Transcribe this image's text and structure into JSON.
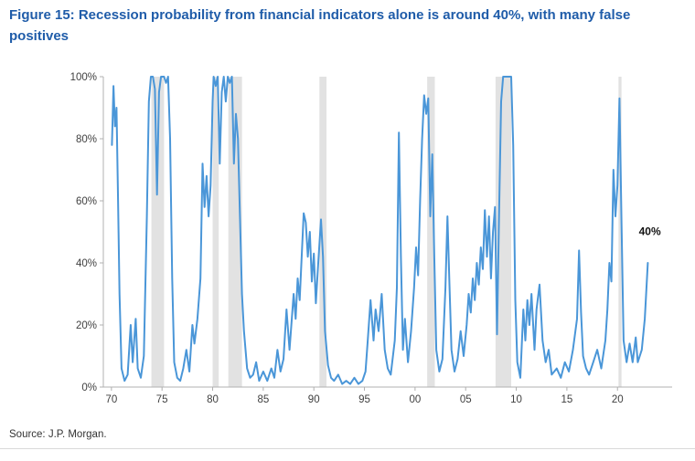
{
  "page": {
    "source": "Source: J.P. Morgan."
  },
  "chart_data": {
    "type": "line",
    "title": "Figure 15: Recession probability from financial indicators alone is around 40%, with many false positives",
    "xlabel": "",
    "ylabel": "",
    "xlim": [
      1969.2,
      2025.4
    ],
    "ylim": [
      0,
      100
    ],
    "grid": false,
    "legend": "none",
    "xticks": [
      1970,
      1975,
      1980,
      1985,
      1990,
      1995,
      2000,
      2005,
      2010,
      2015,
      2020
    ],
    "xtick_labels": [
      "70",
      "75",
      "80",
      "85",
      "90",
      "95",
      "00",
      "05",
      "10",
      "15",
      "20"
    ],
    "yticks": [
      0,
      20,
      40,
      60,
      80,
      100
    ],
    "ytick_labels": [
      "0%",
      "20%",
      "40%",
      "60%",
      "80%",
      "100%"
    ],
    "axis_color": "#b0b0b0",
    "tick_label_color": "#3f3f3f",
    "recession_band_color": "#e2e2e2",
    "recession_bands": [
      [
        1973.95,
        1975.2
      ],
      [
        1980.0,
        1980.6
      ],
      [
        1981.55,
        1982.9
      ],
      [
        1990.55,
        1991.25
      ],
      [
        2001.2,
        2001.95
      ],
      [
        2007.95,
        2009.5
      ],
      [
        2020.1,
        2020.4
      ]
    ],
    "annotation": {
      "text": "40%",
      "x": 2023.2,
      "y": 49,
      "color": "#111111"
    },
    "series": [
      {
        "name": "Recession probability from financial indicators",
        "color": "#4a96d8",
        "points": [
          [
            1970.05,
            78
          ],
          [
            1970.2,
            97
          ],
          [
            1970.35,
            84
          ],
          [
            1970.5,
            90
          ],
          [
            1970.65,
            62
          ],
          [
            1970.8,
            30
          ],
          [
            1971.0,
            6
          ],
          [
            1971.3,
            2
          ],
          [
            1971.6,
            4
          ],
          [
            1971.9,
            20
          ],
          [
            1972.1,
            8
          ],
          [
            1972.4,
            22
          ],
          [
            1972.6,
            6
          ],
          [
            1972.9,
            3
          ],
          [
            1973.2,
            10
          ],
          [
            1973.5,
            55
          ],
          [
            1973.7,
            92
          ],
          [
            1973.9,
            100
          ],
          [
            1974.1,
            100
          ],
          [
            1974.3,
            96
          ],
          [
            1974.5,
            62
          ],
          [
            1974.7,
            95
          ],
          [
            1974.9,
            100
          ],
          [
            1975.2,
            100
          ],
          [
            1975.4,
            98
          ],
          [
            1975.6,
            100
          ],
          [
            1975.8,
            80
          ],
          [
            1976.0,
            35
          ],
          [
            1976.2,
            8
          ],
          [
            1976.5,
            3
          ],
          [
            1976.8,
            2
          ],
          [
            1977.1,
            6
          ],
          [
            1977.4,
            12
          ],
          [
            1977.7,
            5
          ],
          [
            1978.0,
            20
          ],
          [
            1978.2,
            14
          ],
          [
            1978.5,
            22
          ],
          [
            1978.8,
            35
          ],
          [
            1979.0,
            72
          ],
          [
            1979.2,
            58
          ],
          [
            1979.4,
            68
          ],
          [
            1979.6,
            55
          ],
          [
            1979.8,
            65
          ],
          [
            1980.0,
            92
          ],
          [
            1980.1,
            100
          ],
          [
            1980.3,
            97
          ],
          [
            1980.5,
            100
          ],
          [
            1980.7,
            72
          ],
          [
            1980.9,
            95
          ],
          [
            1981.1,
            100
          ],
          [
            1981.3,
            92
          ],
          [
            1981.5,
            100
          ],
          [
            1981.7,
            98
          ],
          [
            1981.9,
            100
          ],
          [
            1982.1,
            72
          ],
          [
            1982.3,
            88
          ],
          [
            1982.5,
            80
          ],
          [
            1982.7,
            55
          ],
          [
            1982.9,
            30
          ],
          [
            1983.1,
            18
          ],
          [
            1983.4,
            6
          ],
          [
            1983.7,
            3
          ],
          [
            1984.0,
            4
          ],
          [
            1984.3,
            8
          ],
          [
            1984.6,
            2
          ],
          [
            1985.0,
            5
          ],
          [
            1985.4,
            2
          ],
          [
            1985.8,
            6
          ],
          [
            1986.1,
            3
          ],
          [
            1986.4,
            12
          ],
          [
            1986.7,
            5
          ],
          [
            1987.0,
            9
          ],
          [
            1987.3,
            25
          ],
          [
            1987.6,
            12
          ],
          [
            1988.0,
            30
          ],
          [
            1988.2,
            22
          ],
          [
            1988.4,
            35
          ],
          [
            1988.6,
            28
          ],
          [
            1988.8,
            42
          ],
          [
            1989.0,
            56
          ],
          [
            1989.2,
            53
          ],
          [
            1989.4,
            42
          ],
          [
            1989.6,
            50
          ],
          [
            1989.8,
            34
          ],
          [
            1990.0,
            43
          ],
          [
            1990.2,
            27
          ],
          [
            1990.4,
            38
          ],
          [
            1990.7,
            54
          ],
          [
            1990.9,
            42
          ],
          [
            1991.1,
            18
          ],
          [
            1991.4,
            7
          ],
          [
            1991.7,
            3
          ],
          [
            1992.0,
            2
          ],
          [
            1992.4,
            4
          ],
          [
            1992.8,
            1
          ],
          [
            1993.2,
            2
          ],
          [
            1993.6,
            1
          ],
          [
            1994.0,
            3
          ],
          [
            1994.4,
            1
          ],
          [
            1994.8,
            2
          ],
          [
            1995.1,
            5
          ],
          [
            1995.3,
            14
          ],
          [
            1995.6,
            28
          ],
          [
            1995.9,
            15
          ],
          [
            1996.1,
            25
          ],
          [
            1996.4,
            18
          ],
          [
            1996.7,
            30
          ],
          [
            1997.0,
            12
          ],
          [
            1997.3,
            6
          ],
          [
            1997.6,
            4
          ],
          [
            1998.0,
            15
          ],
          [
            1998.2,
            32
          ],
          [
            1998.4,
            82
          ],
          [
            1998.6,
            42
          ],
          [
            1998.8,
            12
          ],
          [
            1999.0,
            22
          ],
          [
            1999.3,
            8
          ],
          [
            1999.6,
            18
          ],
          [
            1999.9,
            32
          ],
          [
            2000.1,
            45
          ],
          [
            2000.3,
            36
          ],
          [
            2000.5,
            60
          ],
          [
            2000.7,
            80
          ],
          [
            2000.9,
            94
          ],
          [
            2001.1,
            88
          ],
          [
            2001.3,
            93
          ],
          [
            2001.5,
            55
          ],
          [
            2001.7,
            75
          ],
          [
            2001.9,
            42
          ],
          [
            2002.1,
            12
          ],
          [
            2002.4,
            5
          ],
          [
            2002.7,
            9
          ],
          [
            2003.0,
            32
          ],
          [
            2003.2,
            55
          ],
          [
            2003.4,
            33
          ],
          [
            2003.6,
            12
          ],
          [
            2003.9,
            5
          ],
          [
            2004.2,
            9
          ],
          [
            2004.5,
            18
          ],
          [
            2004.8,
            10
          ],
          [
            2005.1,
            20
          ],
          [
            2005.3,
            30
          ],
          [
            2005.5,
            24
          ],
          [
            2005.7,
            35
          ],
          [
            2005.9,
            28
          ],
          [
            2006.1,
            40
          ],
          [
            2006.3,
            33
          ],
          [
            2006.5,
            45
          ],
          [
            2006.7,
            38
          ],
          [
            2006.9,
            57
          ],
          [
            2007.1,
            42
          ],
          [
            2007.3,
            55
          ],
          [
            2007.5,
            35
          ],
          [
            2007.7,
            50
          ],
          [
            2007.9,
            58
          ],
          [
            2008.1,
            17
          ],
          [
            2008.3,
            55
          ],
          [
            2008.5,
            92
          ],
          [
            2008.7,
            100
          ],
          [
            2009.0,
            100
          ],
          [
            2009.3,
            100
          ],
          [
            2009.5,
            100
          ],
          [
            2009.7,
            78
          ],
          [
            2009.9,
            28
          ],
          [
            2010.1,
            8
          ],
          [
            2010.4,
            3
          ],
          [
            2010.7,
            25
          ],
          [
            2010.9,
            15
          ],
          [
            2011.1,
            28
          ],
          [
            2011.3,
            20
          ],
          [
            2011.5,
            30
          ],
          [
            2011.8,
            12
          ],
          [
            2012.0,
            25
          ],
          [
            2012.3,
            33
          ],
          [
            2012.6,
            15
          ],
          [
            2012.9,
            8
          ],
          [
            2013.2,
            12
          ],
          [
            2013.5,
            4
          ],
          [
            2014.0,
            6
          ],
          [
            2014.4,
            3
          ],
          [
            2014.8,
            8
          ],
          [
            2015.2,
            5
          ],
          [
            2015.6,
            12
          ],
          [
            2016.0,
            22
          ],
          [
            2016.2,
            44
          ],
          [
            2016.4,
            24
          ],
          [
            2016.6,
            10
          ],
          [
            2016.9,
            6
          ],
          [
            2017.2,
            4
          ],
          [
            2017.6,
            8
          ],
          [
            2018.0,
            12
          ],
          [
            2018.4,
            6
          ],
          [
            2018.8,
            15
          ],
          [
            2019.0,
            25
          ],
          [
            2019.2,
            40
          ],
          [
            2019.4,
            34
          ],
          [
            2019.6,
            70
          ],
          [
            2019.8,
            55
          ],
          [
            2020.0,
            65
          ],
          [
            2020.2,
            93
          ],
          [
            2020.4,
            52
          ],
          [
            2020.6,
            15
          ],
          [
            2020.9,
            8
          ],
          [
            2021.2,
            14
          ],
          [
            2021.5,
            8
          ],
          [
            2021.8,
            16
          ],
          [
            2022.0,
            8
          ],
          [
            2022.4,
            12
          ],
          [
            2022.7,
            22
          ],
          [
            2023.0,
            40
          ]
        ]
      }
    ]
  }
}
